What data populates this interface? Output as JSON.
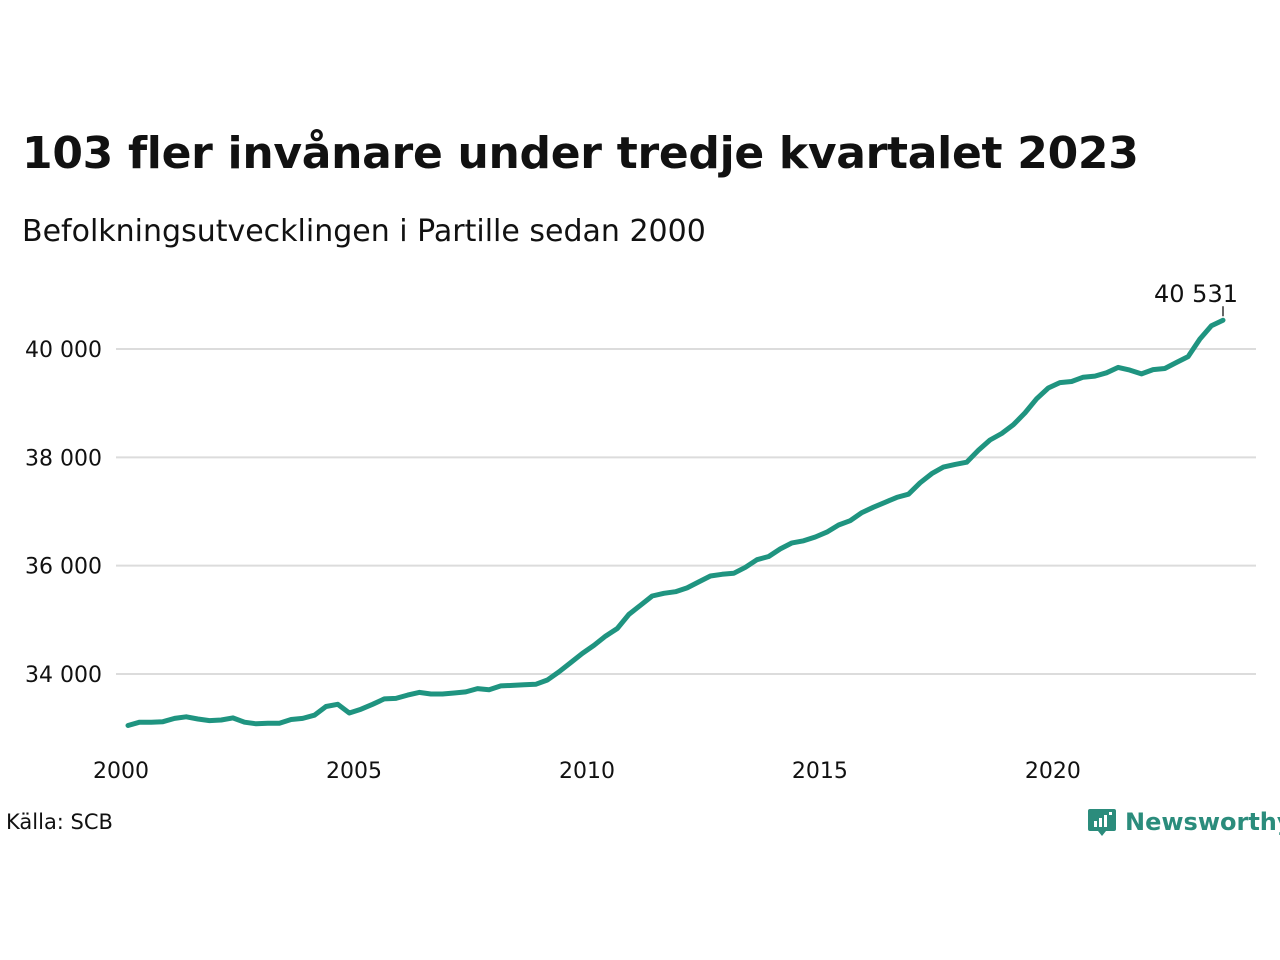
{
  "header": {
    "title": "103 fler invånare under tredje kvartalet 2023",
    "subtitle": "Befolkningsutvecklingen i Partille sedan 2000"
  },
  "footer": {
    "source": "Källa: SCB",
    "brand": "Newsworthy"
  },
  "colors": {
    "line": "#1f9480",
    "brand": "#2b8c7c",
    "grid": "#dcdcdc"
  },
  "chart_data": {
    "type": "line",
    "title": "103 fler invånare under tredje kvartalet 2023",
    "subtitle": "Befolkningsutvecklingen i Partille sedan 2000",
    "xlabel": "",
    "ylabel": "",
    "x_ticks": [
      2000,
      2005,
      2010,
      2015,
      2020
    ],
    "x_tick_labels": [
      "2000",
      "2005",
      "2010",
      "2015",
      "2020"
    ],
    "y_ticks": [
      34000,
      36000,
      38000,
      40000
    ],
    "y_tick_labels": [
      "34 000",
      "36 000",
      "38 000",
      "40 000"
    ],
    "xlim": [
      2000,
      2024.5
    ],
    "ylim": [
      32500,
      41000
    ],
    "grid": "horizontal",
    "end_label": "40 531",
    "series": [
      {
        "x": [
          2000.0,
          2000.25,
          2000.5,
          2000.75,
          2001.0,
          2001.25,
          2001.5,
          2001.75,
          2002.0,
          2002.25,
          2002.5,
          2002.75,
          2003.0,
          2003.25,
          2003.5,
          2003.75,
          2004.0,
          2004.25,
          2004.5,
          2004.75,
          2005.0,
          2005.25,
          2005.5,
          2005.75,
          2006.0,
          2006.25,
          2006.5,
          2006.75,
          2007.0,
          2007.25,
          2007.5,
          2007.75,
          2008.0,
          2008.25,
          2008.5,
          2008.75,
          2009.0,
          2009.25,
          2009.5,
          2009.75,
          2010.0,
          2010.25,
          2010.5,
          2010.75,
          2011.0,
          2011.25,
          2011.5,
          2011.75,
          2012.0,
          2012.25,
          2012.5,
          2012.75,
          2013.0,
          2013.25,
          2013.5,
          2013.75,
          2014.0,
          2014.25,
          2014.5,
          2014.75,
          2015.0,
          2015.25,
          2015.5,
          2015.75,
          2016.0,
          2016.25,
          2016.5,
          2016.75,
          2017.0,
          2017.25,
          2017.5,
          2017.75,
          2018.0,
          2018.25,
          2018.5,
          2018.75,
          2019.0,
          2019.25,
          2019.5,
          2019.75,
          2020.0,
          2020.25,
          2020.5,
          2020.75,
          2021.0,
          2021.25,
          2021.5,
          2021.75,
          2022.0,
          2022.25,
          2022.5,
          2022.75,
          2023.0,
          2023.25,
          2023.5
        ],
        "values": [
          33050,
          33110,
          33110,
          33120,
          33180,
          33210,
          33170,
          33140,
          33150,
          33190,
          33110,
          33080,
          33090,
          33090,
          33160,
          33180,
          33240,
          33400,
          33440,
          33280,
          33350,
          33440,
          33540,
          33550,
          33610,
          33660,
          33630,
          33630,
          33650,
          33670,
          33730,
          33710,
          33780,
          33790,
          33800,
          33810,
          33890,
          34040,
          34210,
          34380,
          34530,
          34700,
          34840,
          35100,
          35270,
          35440,
          35490,
          35520,
          35590,
          35700,
          35810,
          35840,
          35860,
          35970,
          36110,
          36170,
          36310,
          36420,
          36460,
          36530,
          36620,
          36750,
          36830,
          36980,
          37080,
          37170,
          37260,
          37320,
          37530,
          37700,
          37820,
          37870,
          37910,
          38130,
          38320,
          38440,
          38600,
          38820,
          39080,
          39280,
          39380,
          39400,
          39480,
          39500,
          39560,
          39660,
          39610,
          39540,
          39620,
          39640,
          39750,
          39860,
          40180,
          40430,
          40531
        ]
      }
    ]
  }
}
